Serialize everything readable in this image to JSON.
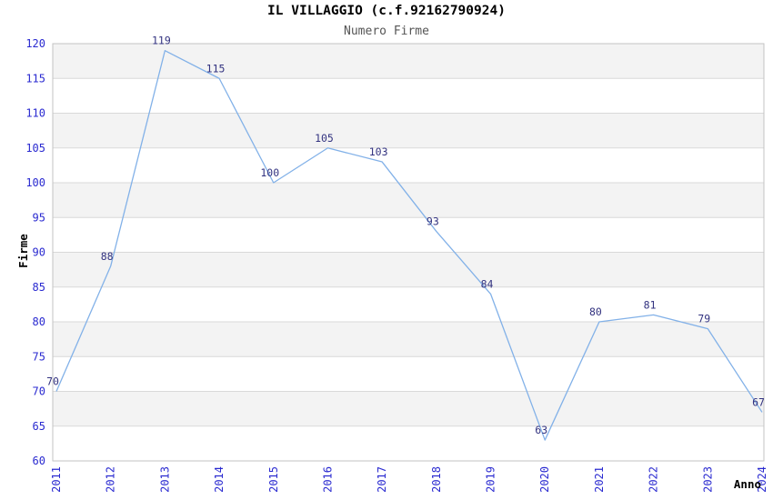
{
  "chart_data": {
    "type": "line",
    "title": "IL VILLAGGIO (c.f.92162790924)",
    "subtitle": "Numero Firme",
    "xlabel": "Anno",
    "ylabel": "Firme",
    "x": [
      "2011",
      "2012",
      "2013",
      "2014",
      "2015",
      "2016",
      "2017",
      "2018",
      "2019",
      "2020",
      "2021",
      "2022",
      "2023",
      "2024"
    ],
    "series": [
      {
        "name": "Firme",
        "values": [
          70,
          88,
          119,
          115,
          100,
          105,
          103,
          93,
          84,
          63,
          80,
          81,
          79,
          67
        ]
      }
    ],
    "ylim": [
      60,
      120
    ],
    "ytick_step": 5,
    "grid": true,
    "background_bands": true,
    "data_labels": true,
    "legend_position": "none"
  },
  "colors": {
    "title_text": "#000000",
    "subtitle_text": "#555555",
    "axis_title_text": "#000000",
    "tick_label": "#2a2ad0",
    "data_label": "#333380",
    "line": "#82b1e8",
    "band": "#f3f3f3",
    "gridline": "#d9d9d9",
    "plot_border": "#c3c3c3",
    "background": "#ffffff"
  }
}
